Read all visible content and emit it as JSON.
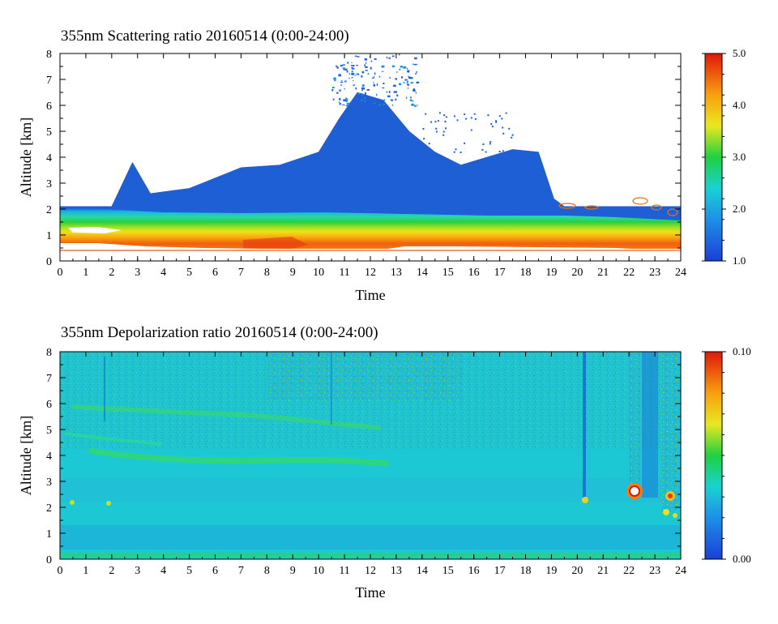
{
  "chart_data": [
    {
      "type": "heatmap",
      "title": "355nm Scattering ratio  20160514 (0:00-24:00)",
      "xlabel": "Time",
      "ylabel": "Altitude [km]",
      "xlim": [
        0,
        24
      ],
      "ylim": [
        0,
        8
      ],
      "xticks": [
        "0",
        "1",
        "2",
        "3",
        "4",
        "5",
        "6",
        "7",
        "8",
        "9",
        "10",
        "11",
        "12",
        "13",
        "14",
        "15",
        "16",
        "17",
        "18",
        "19",
        "20",
        "21",
        "22",
        "23",
        "24"
      ],
      "yticks": [
        "0",
        "1",
        "2",
        "3",
        "4",
        "5",
        "6",
        "7",
        "8"
      ],
      "colorbar": {
        "min": 1.0,
        "max": 5.0,
        "ticks": [
          "1.0",
          "2.0",
          "3.0",
          "4.0",
          "5.0"
        ]
      },
      "grid": false,
      "cloud_top_km": [
        [
          0,
          2.1
        ],
        [
          2,
          2.1
        ],
        [
          2.8,
          3.8
        ],
        [
          3.5,
          2.6
        ],
        [
          5,
          2.8
        ],
        [
          7,
          3.6
        ],
        [
          8.5,
          3.7
        ],
        [
          10,
          4.2
        ],
        [
          10.8,
          5.5
        ],
        [
          11.5,
          6.5
        ],
        [
          12.5,
          6.2
        ],
        [
          13.5,
          5.0
        ],
        [
          14.5,
          4.2
        ],
        [
          15.5,
          3.7
        ],
        [
          16.5,
          4.0
        ],
        [
          17.5,
          4.3
        ],
        [
          18.5,
          4.2
        ],
        [
          19.1,
          2.4
        ],
        [
          19.5,
          2.1
        ],
        [
          24,
          2.1
        ]
      ]
    },
    {
      "type": "heatmap",
      "title": "355nm Depolarization ratio  20160514 (0:00-24:00)",
      "xlabel": "Time",
      "ylabel": "Altitude [km]",
      "xlim": [
        0,
        24
      ],
      "ylim": [
        0,
        8
      ],
      "xticks": [
        "0",
        "1",
        "2",
        "3",
        "4",
        "5",
        "6",
        "7",
        "8",
        "9",
        "10",
        "11",
        "12",
        "13",
        "14",
        "15",
        "16",
        "17",
        "18",
        "19",
        "20",
        "21",
        "22",
        "23",
        "24"
      ],
      "yticks": [
        "0",
        "1",
        "2",
        "3",
        "4",
        "5",
        "6",
        "7",
        "8"
      ],
      "colorbar": {
        "min": 0.0,
        "max": 0.1,
        "ticks": [
          "0.00",
          "0.10"
        ]
      },
      "grid": false
    }
  ]
}
